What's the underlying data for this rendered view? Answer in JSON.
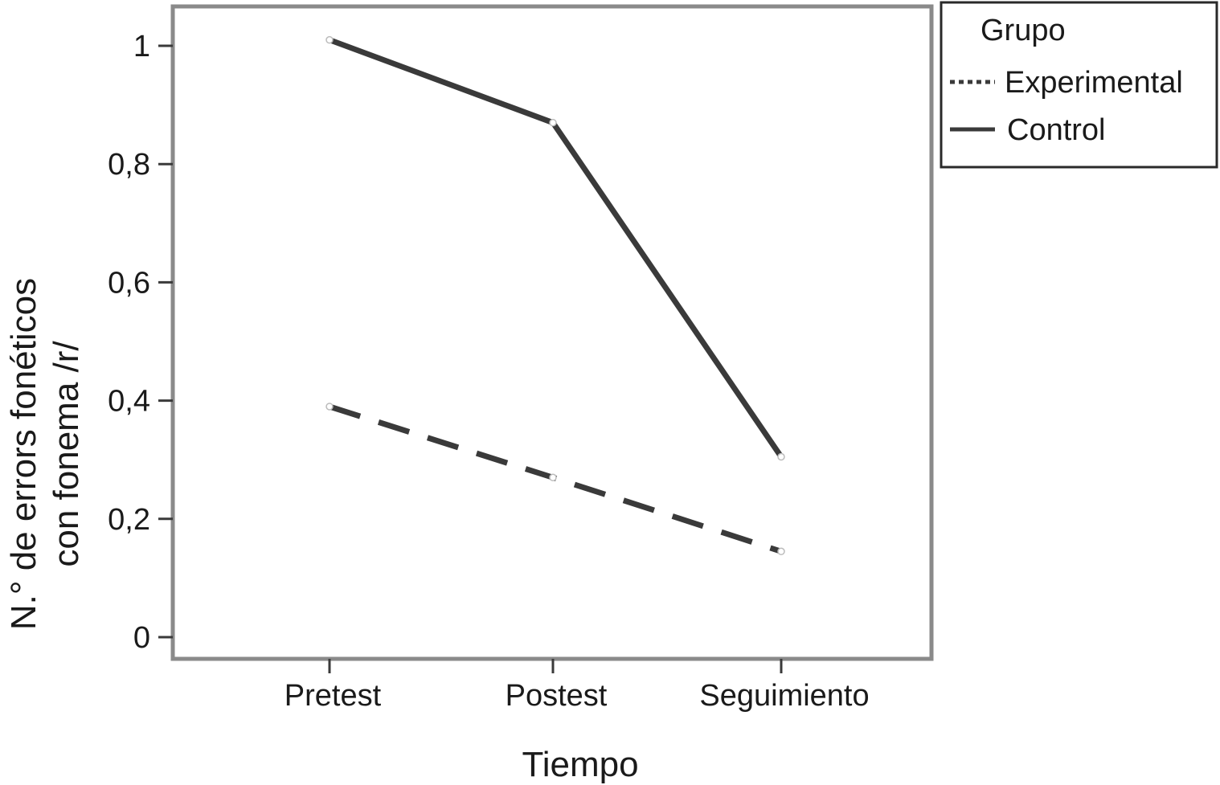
{
  "chart_data": {
    "type": "line",
    "categories": [
      "Pretest",
      "Postest",
      "Seguimiento"
    ],
    "series": [
      {
        "name": "Experimental",
        "values": [
          0.39,
          0.27,
          0.145
        ],
        "style": "dashed",
        "color": "#3a3a3a"
      },
      {
        "name": "Control",
        "values": [
          1.01,
          0.87,
          0.305
        ],
        "style": "solid",
        "color": "#3a3a3a"
      }
    ],
    "xlabel": "Tiempo",
    "ylabel_lines": [
      "N.° de errors fonéticos",
      "con fonema /r/"
    ],
    "yticks": [
      0,
      0.2,
      0.4,
      0.6,
      0.8,
      1
    ],
    "ytick_labels": [
      "0",
      "0,2",
      "0,4",
      "0,6",
      "0,8",
      "1"
    ],
    "ylim": [
      0,
      1.05
    ],
    "grid": false,
    "legend": {
      "title": "Grupo",
      "position": "top-right-outside"
    }
  }
}
